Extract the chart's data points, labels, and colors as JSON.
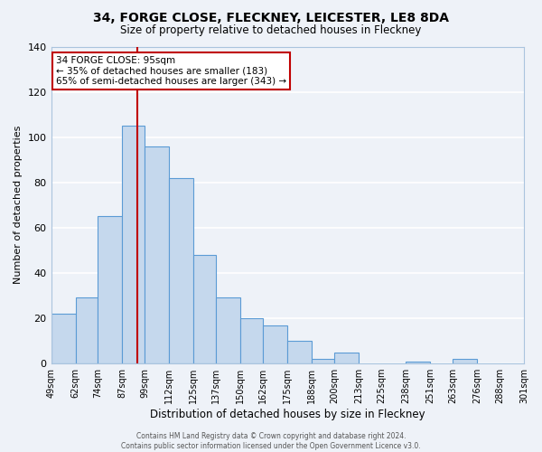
{
  "title": "34, FORGE CLOSE, FLECKNEY, LEICESTER, LE8 8DA",
  "subtitle": "Size of property relative to detached houses in Fleckney",
  "xlabel": "Distribution of detached houses by size in Fleckney",
  "ylabel": "Number of detached properties",
  "bin_labels": [
    "49sqm",
    "62sqm",
    "74sqm",
    "87sqm",
    "99sqm",
    "112sqm",
    "125sqm",
    "137sqm",
    "150sqm",
    "162sqm",
    "175sqm",
    "188sqm",
    "200sqm",
    "213sqm",
    "225sqm",
    "238sqm",
    "251sqm",
    "263sqm",
    "276sqm",
    "288sqm",
    "301sqm"
  ],
  "bin_edges": [
    49,
    62,
    74,
    87,
    99,
    112,
    125,
    137,
    150,
    162,
    175,
    188,
    200,
    213,
    225,
    238,
    251,
    263,
    276,
    288,
    301
  ],
  "bar_heights": [
    22,
    29,
    65,
    105,
    96,
    82,
    48,
    29,
    20,
    17,
    10,
    2,
    5,
    0,
    0,
    1,
    0,
    2,
    0,
    0
  ],
  "bar_color": "#c5d8ed",
  "bar_edge_color": "#5b9bd5",
  "vline_x": 95,
  "vline_color": "#c00000",
  "annotation_title": "34 FORGE CLOSE: 95sqm",
  "annotation_line1": "← 35% of detached houses are smaller (183)",
  "annotation_line2": "65% of semi-detached houses are larger (343) →",
  "annotation_box_color": "#c00000",
  "ylim": [
    0,
    140
  ],
  "yticks": [
    0,
    20,
    40,
    60,
    80,
    100,
    120,
    140
  ],
  "footer_line1": "Contains HM Land Registry data © Crown copyright and database right 2024.",
  "footer_line2": "Contains public sector information licensed under the Open Government Licence v3.0.",
  "bg_color": "#eef2f8",
  "grid_color": "#ffffff"
}
